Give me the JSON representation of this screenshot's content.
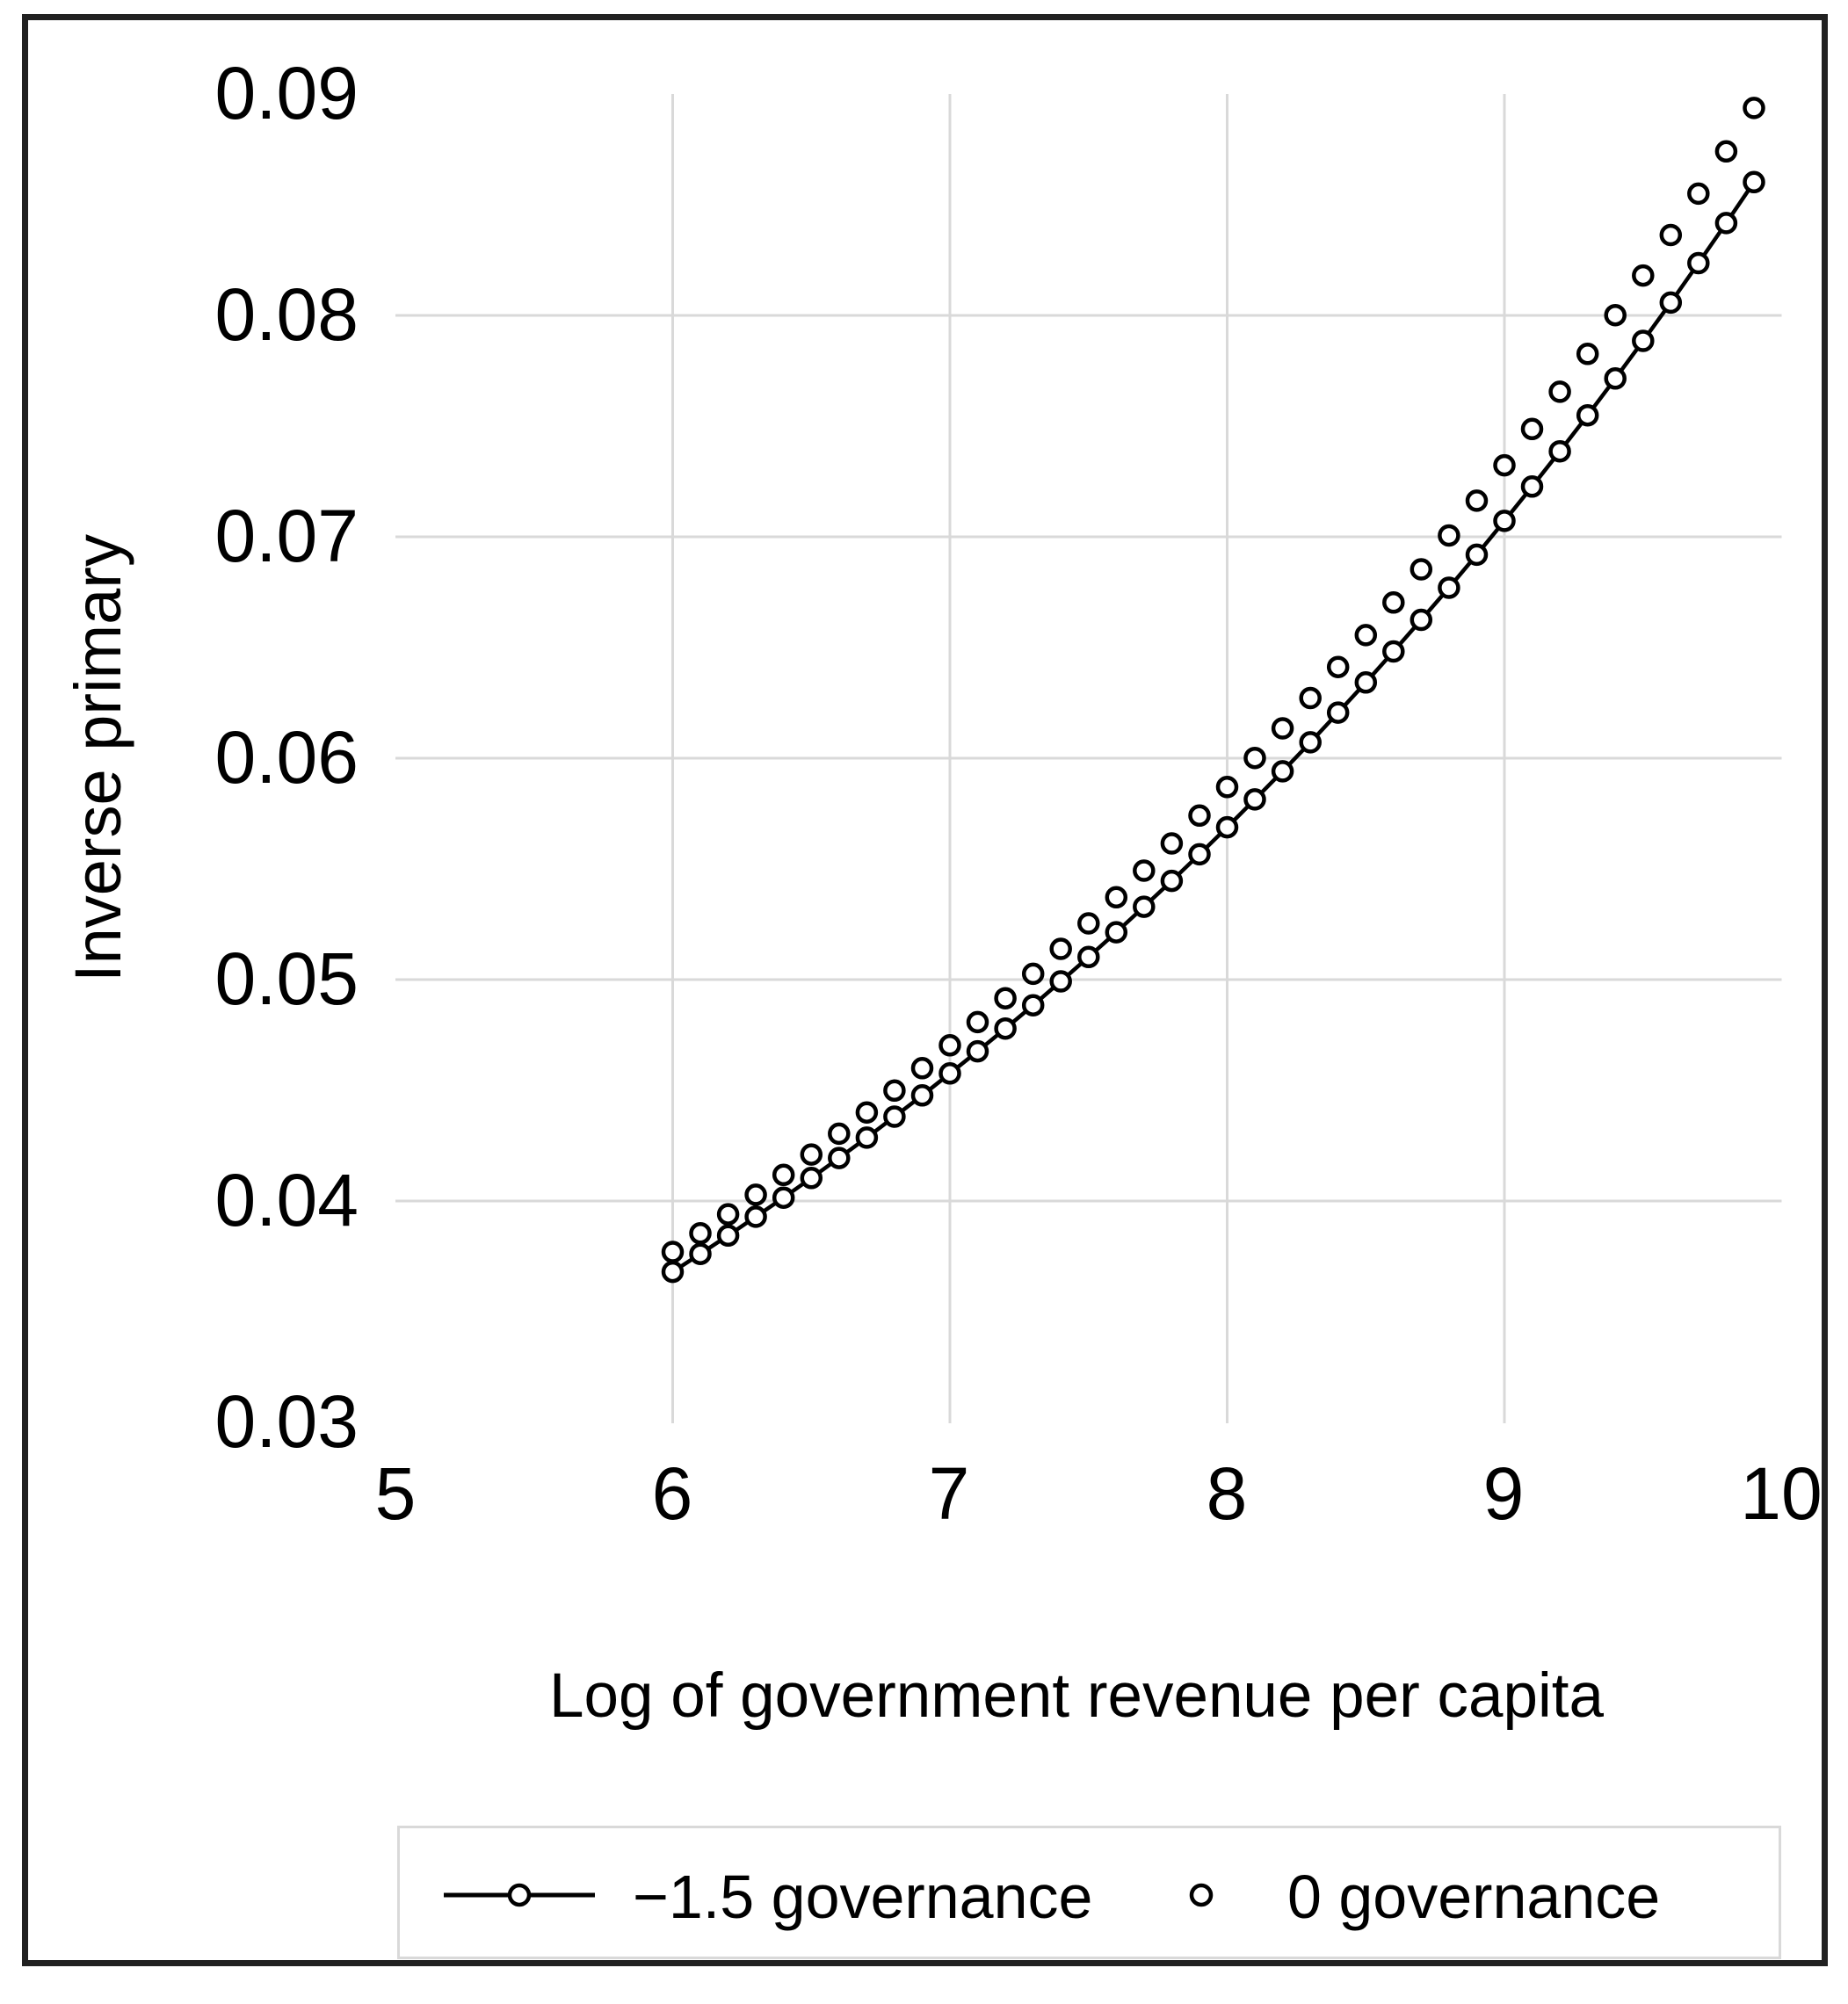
{
  "chart_data": {
    "type": "line",
    "title": "",
    "xlabel": "Log of government revenue per capita",
    "ylabel": "Inverse primary",
    "xlim": [
      5,
      10
    ],
    "ylim": [
      0.03,
      0.09
    ],
    "grid": {
      "vertical_x": [
        6,
        7,
        8,
        9
      ],
      "horizontal_y": [
        0.08,
        0.07,
        0.06,
        0.05,
        0.04
      ]
    },
    "x_tick_labels": [
      "5",
      "6",
      "7",
      "8",
      "9",
      "10"
    ],
    "x_tick_values": [
      5,
      6,
      7,
      8,
      9,
      10
    ],
    "y_tick_labels": [
      "0.09",
      "0.08",
      "0.07",
      "0.06",
      "0.05",
      "0.04",
      "0.03"
    ],
    "y_tick_values": [
      0.09,
      0.08,
      0.07,
      0.06,
      0.05,
      0.04,
      0.03
    ],
    "legend_position": "bottom",
    "series": [
      {
        "name": "−1.5 governance",
        "style": "line+marker",
        "marker": "open-circle",
        "color": "#000000",
        "x": [
          6.0,
          6.1,
          6.2,
          6.3,
          6.4,
          6.5,
          6.6,
          6.7,
          6.8,
          6.9,
          7.0,
          7.1,
          7.2,
          7.3,
          7.4,
          7.5,
          7.6,
          7.7,
          7.8,
          7.9,
          8.0,
          8.1,
          8.2,
          8.3,
          8.4,
          8.5,
          8.6,
          8.7,
          8.8,
          8.9,
          9.0,
          9.1,
          9.2,
          9.3,
          9.4,
          9.5,
          9.6,
          9.7,
          9.8,
          9.9
        ],
        "y": [
          0.0368,
          0.03761,
          0.03844,
          0.03929,
          0.04015,
          0.04104,
          0.04194,
          0.04286,
          0.04381,
          0.04477,
          0.04576,
          0.04676,
          0.04779,
          0.04884,
          0.04992,
          0.05102,
          0.05214,
          0.05329,
          0.05446,
          0.05566,
          0.05688,
          0.05814,
          0.05941,
          0.06072,
          0.06206,
          0.06342,
          0.06482,
          0.06625,
          0.0677,
          0.06919,
          0.07072,
          0.07227,
          0.07386,
          0.07549,
          0.07715,
          0.07885,
          0.08058,
          0.08236,
          0.08417,
          0.08602
        ]
      },
      {
        "name": "0 governance",
        "style": "marker",
        "marker": "open-circle",
        "color": "#000000",
        "x": [
          6.0,
          6.1,
          6.2,
          6.3,
          6.4,
          6.5,
          6.6,
          6.7,
          6.8,
          6.9,
          7.0,
          7.1,
          7.2,
          7.3,
          7.4,
          7.5,
          7.6,
          7.7,
          7.8,
          7.9,
          8.0,
          8.1,
          8.2,
          8.3,
          8.4,
          8.5,
          8.6,
          8.7,
          8.8,
          8.9,
          9.0,
          9.1,
          9.2,
          9.3,
          9.4,
          9.5,
          9.6,
          9.7,
          9.8,
          9.9
        ],
        "y": [
          0.0377,
          0.03854,
          0.0394,
          0.04028,
          0.04118,
          0.0421,
          0.04304,
          0.044,
          0.04499,
          0.046,
          0.04703,
          0.04808,
          0.04916,
          0.05026,
          0.05139,
          0.05254,
          0.05372,
          0.05492,
          0.05615,
          0.05741,
          0.0587,
          0.06001,
          0.06135,
          0.06272,
          0.06412,
          0.06556,
          0.06703,
          0.06853,
          0.07006,
          0.07163,
          0.07323,
          0.07487,
          0.07655,
          0.07826,
          0.08001,
          0.0818,
          0.08363,
          0.0855,
          0.08741,
          0.08937
        ]
      }
    ]
  },
  "colors": {
    "background": "#ffffff",
    "frame": "#212121",
    "grid": "#d9d9d9",
    "legend_border": "#d9d9d9",
    "series": "#000000"
  }
}
